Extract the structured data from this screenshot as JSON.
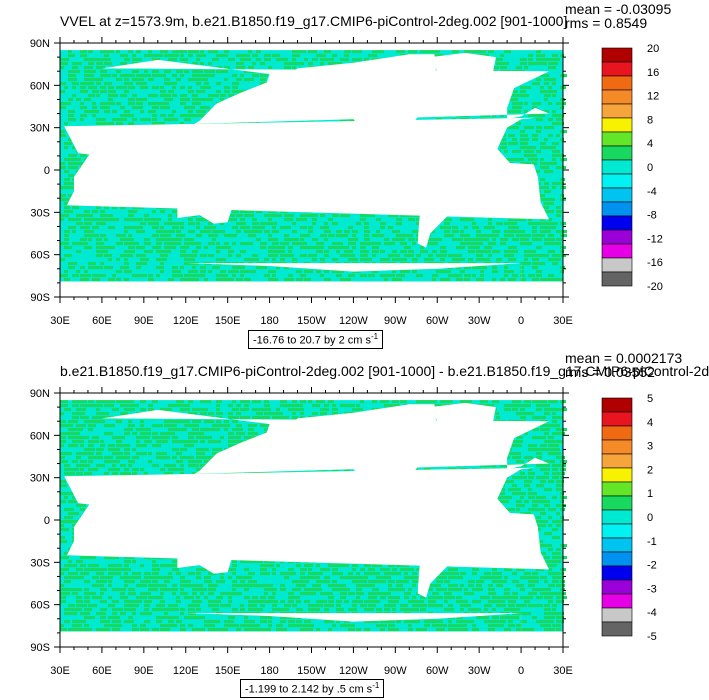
{
  "chart_data": [
    {
      "type": "heatmap",
      "title": "VVEL at z=1573.9m, b.e21.B1850.f19_g17.CMIP6-piControl-2deg.002 [901-1000]",
      "stats": {
        "mean": "mean = -0.03095",
        "rms": "rms = 0.8549"
      },
      "x_ticks": [
        "30E",
        "60E",
        "90E",
        "120E",
        "150E",
        "180",
        "150W",
        "120W",
        "90W",
        "60W",
        "30W",
        "0",
        "30E"
      ],
      "y_ticks": [
        "90N",
        "60N",
        "30N",
        "0",
        "30S",
        "60S",
        "90S"
      ],
      "colorbar_labels": [
        "20",
        "16",
        "12",
        "8",
        "4",
        "0",
        "-4",
        "-8",
        "-12",
        "-16",
        "-20"
      ],
      "range_label": "-16.76 to 20.7 by 2 cm s",
      "range_unit_exp": "-1"
    },
    {
      "type": "heatmap",
      "title": "b.e21.B1850.f19_g17.CMIP6-piControl-2deg.002 [901-1000] - b.e21.B1850.f19_g17.CMIP6-piControl-2d",
      "stats": {
        "mean": "mean = 0.0002173",
        "rms": "rms = 0.03552"
      },
      "x_ticks": [
        "30E",
        "60E",
        "90E",
        "120E",
        "150E",
        "180",
        "150W",
        "120W",
        "90W",
        "60W",
        "30W",
        "0",
        "30E"
      ],
      "y_ticks": [
        "90N",
        "60N",
        "30N",
        "0",
        "30S",
        "60S",
        "90S"
      ],
      "colorbar_labels": [
        "5",
        "4",
        "3",
        "2",
        "1",
        "0",
        "-1",
        "-2",
        "-3",
        "-4",
        "-5"
      ],
      "range_label": "-1.199 to 2.142 by .5 cm s",
      "range_unit_exp": "-1"
    }
  ],
  "colors": {
    "colorbar": [
      "#b00000",
      "#e8141e",
      "#f06a14",
      "#f58a28",
      "#f6a43c",
      "#f8f200",
      "#64e628",
      "#18d860",
      "#00ead2",
      "#00f2f2",
      "#00c4f0",
      "#0092f0",
      "#0000f0",
      "#9a00d8",
      "#e600e6",
      "#c8c8c8",
      "#646464"
    ],
    "ocean_cyan": "#00ead2",
    "ocean_green": "#18d860"
  }
}
